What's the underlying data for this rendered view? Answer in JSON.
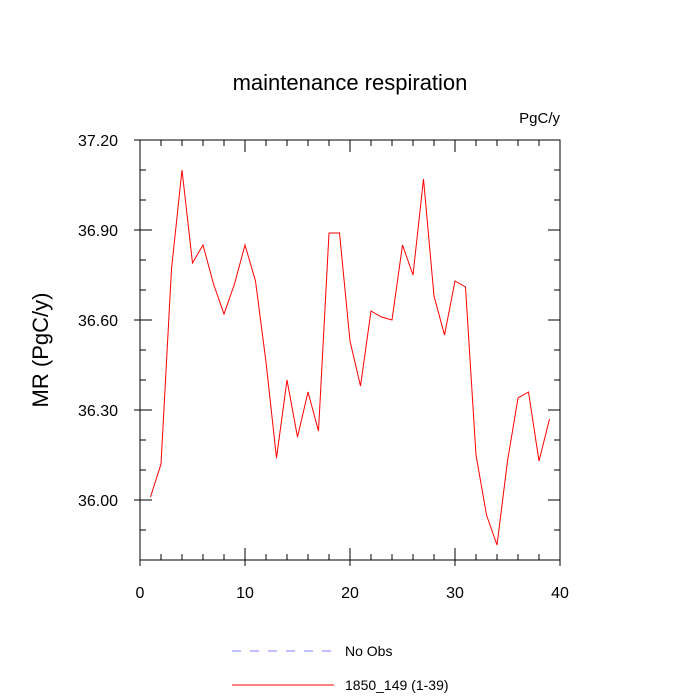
{
  "chart_data": {
    "type": "line",
    "title": "maintenance respiration",
    "units": "PgC/y",
    "xlabel": "",
    "ylabel": "MR  (PgC/y)",
    "xlim": [
      0,
      40
    ],
    "ylim": [
      35.8,
      37.2
    ],
    "xticks": [
      0,
      10,
      20,
      30,
      40
    ],
    "xtick_labels": [
      "0",
      "10",
      "20",
      "30",
      "40"
    ],
    "yticks": [
      36.0,
      36.3,
      36.6,
      36.9,
      37.2
    ],
    "ytick_labels": [
      "36.00",
      "36.30",
      "36.60",
      "36.90",
      "37.20"
    ],
    "grid": false,
    "legend_position": "bottom-center",
    "series": [
      {
        "name": "No Obs",
        "color": "#8080ff",
        "dash": "dashed",
        "x": [],
        "values": []
      },
      {
        "name": "1850_149 (1-39)",
        "color": "#ff0000",
        "dash": "solid",
        "x": [
          1,
          2,
          3,
          4,
          5,
          6,
          7,
          8,
          9,
          10,
          11,
          12,
          13,
          14,
          15,
          16,
          17,
          18,
          19,
          20,
          21,
          22,
          23,
          24,
          25,
          26,
          27,
          28,
          29,
          30,
          31,
          32,
          33,
          34,
          35,
          36,
          37,
          38,
          39
        ],
        "values": [
          36.01,
          36.12,
          36.77,
          37.1,
          36.79,
          36.85,
          36.72,
          36.62,
          36.72,
          36.85,
          36.73,
          36.46,
          36.14,
          36.4,
          36.21,
          36.36,
          36.23,
          36.89,
          36.89,
          36.53,
          36.38,
          36.63,
          36.61,
          36.6,
          36.85,
          36.75,
          37.07,
          36.68,
          36.55,
          36.73,
          36.71,
          36.15,
          35.95,
          35.85,
          36.13,
          36.34,
          36.36,
          36.13,
          36.27
        ]
      }
    ]
  }
}
